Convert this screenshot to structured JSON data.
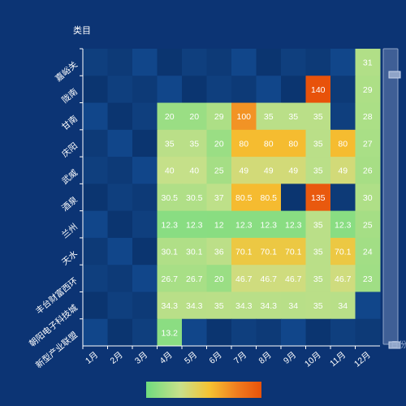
{
  "chart_data": {
    "type": "heatmap",
    "ylabel": "类目",
    "x_categories": [
      "1月",
      "2月",
      "3月",
      "4月",
      "5月",
      "6月",
      "7月",
      "8月",
      "9月",
      "10月",
      "11月",
      "12月"
    ],
    "y_categories": [
      "嘉峪关",
      "陇南",
      "甘南",
      "庆阳",
      "武威",
      "酒泉",
      "兰州",
      "天水",
      "丰台财富西环",
      "朝阳电子科技城",
      "新型产业联盟"
    ],
    "values": [
      [
        null,
        null,
        null,
        null,
        null,
        null,
        null,
        null,
        null,
        null,
        null,
        31
      ],
      [
        null,
        null,
        null,
        null,
        null,
        null,
        null,
        null,
        null,
        140,
        null,
        29
      ],
      [
        null,
        null,
        null,
        20,
        20,
        29,
        100,
        35,
        35,
        35,
        null,
        28
      ],
      [
        null,
        null,
        null,
        35,
        35,
        20,
        80,
        80,
        80,
        35,
        80,
        27
      ],
      [
        null,
        null,
        null,
        40,
        40,
        25,
        49,
        49,
        49,
        35,
        49,
        26
      ],
      [
        null,
        null,
        null,
        30.5,
        30.5,
        37,
        80.5,
        80.5,
        null,
        135,
        null,
        30
      ],
      [
        null,
        null,
        null,
        12.3,
        12.3,
        12,
        12.3,
        12.3,
        12.3,
        35,
        12.3,
        25
      ],
      [
        null,
        null,
        null,
        30.1,
        30.1,
        36,
        70.1,
        70.1,
        70.1,
        35,
        70.1,
        24
      ],
      [
        null,
        null,
        null,
        26.7,
        26.7,
        20,
        46.7,
        46.7,
        46.7,
        35,
        46.7,
        23
      ],
      [
        null,
        null,
        null,
        34.3,
        34.3,
        35,
        34.3,
        34.3,
        34,
        35,
        34,
        null
      ],
      [
        null,
        null,
        null,
        13.2,
        null,
        null,
        null,
        null,
        null,
        null,
        null,
        null
      ]
    ],
    "visual_map": {
      "min": 0,
      "max": 140,
      "colors": [
        "#6fdc7e",
        "#c9e08a",
        "#f5c232",
        "#f07a1e",
        "#e8520a"
      ]
    },
    "empty_colors": [
      "#0f3f7e",
      "#0d3a77",
      "#11468a",
      "#0b3570"
    ],
    "handle_label": "日份"
  }
}
